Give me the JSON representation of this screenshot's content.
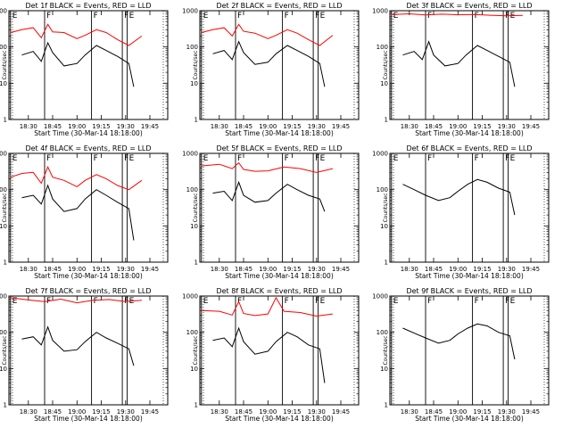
{
  "chart_data": [
    {
      "type": "line",
      "title": "Det 1f BLACK = Events, RED = LLD",
      "xlabel": "Start Time (30-Mar-14 18:18:00)",
      "ylabel": "Counts/sec",
      "ylim": [
        1,
        1000
      ],
      "yscale": "log",
      "x_ticks": [
        "18:30",
        "18:45",
        "19:00",
        "19:15",
        "19:30",
        "19:45"
      ],
      "y_ticks": [
        "1",
        "10",
        "100",
        "1000"
      ],
      "markers": [
        {
          "t": "E",
          "x": "18:19"
        },
        {
          "t": "F",
          "x": "18:40"
        },
        {
          "t": "F",
          "x": "19:09"
        },
        {
          "t": "F",
          "x": "19:28"
        },
        {
          "t": "E",
          "x": "19:31"
        }
      ],
      "series": [
        {
          "color": "#ff0000",
          "x": [
            "18:19",
            "18:26",
            "18:33",
            "18:38",
            "18:42",
            "18:45",
            "18:52",
            "19:00",
            "19:05",
            "19:12",
            "19:18",
            "19:25",
            "19:32",
            "19:40"
          ],
          "values": [
            250,
            300,
            340,
            180,
            420,
            260,
            250,
            170,
            210,
            300,
            250,
            160,
            110,
            200
          ]
        },
        {
          "color": "#000000",
          "x": [
            "18:26",
            "18:33",
            "18:38",
            "18:42",
            "18:45",
            "18:52",
            "19:00",
            "19:05",
            "19:12",
            "19:18",
            "19:25",
            "19:32",
            "19:35"
          ],
          "values": [
            60,
            75,
            40,
            130,
            70,
            30,
            35,
            60,
            110,
            80,
            55,
            35,
            8
          ]
        }
      ]
    },
    {
      "type": "line",
      "title": "Det 2f BLACK = Events, RED = LLD",
      "xlabel": "Start Time (30-Mar-14 18:18:00)",
      "ylabel": "Counts/sec",
      "ylim": [
        1,
        1000
      ],
      "yscale": "log",
      "x_ticks": [
        "18:30",
        "18:45",
        "19:00",
        "19:15",
        "19:30",
        "19:45"
      ],
      "y_ticks": [
        "1",
        "10",
        "100",
        "1000"
      ],
      "markers": [
        {
          "t": "E",
          "x": "18:19"
        },
        {
          "t": "F",
          "x": "18:40"
        },
        {
          "t": "F",
          "x": "19:09"
        },
        {
          "t": "F",
          "x": "19:28"
        },
        {
          "t": "E",
          "x": "19:31"
        }
      ],
      "series": [
        {
          "color": "#ff0000",
          "x": [
            "18:19",
            "18:26",
            "18:33",
            "18:38",
            "18:42",
            "18:45",
            "18:52",
            "19:00",
            "19:05",
            "19:12",
            "19:18",
            "19:25",
            "19:32",
            "19:40"
          ],
          "values": [
            250,
            300,
            340,
            200,
            420,
            270,
            240,
            170,
            210,
            300,
            240,
            160,
            110,
            210
          ]
        },
        {
          "color": "#000000",
          "x": [
            "18:26",
            "18:33",
            "18:38",
            "18:42",
            "18:45",
            "18:52",
            "19:00",
            "19:05",
            "19:12",
            "19:18",
            "19:25",
            "19:32",
            "19:35"
          ],
          "values": [
            65,
            80,
            45,
            140,
            70,
            33,
            38,
            65,
            110,
            80,
            55,
            35,
            8
          ]
        }
      ]
    },
    {
      "type": "line",
      "title": "Det 3f BLACK = Events, RED = LLD",
      "xlabel": "Start Time (30-Mar-14 18:18:00)",
      "ylabel": "Counts/sec",
      "ylim": [
        1,
        1000
      ],
      "yscale": "log",
      "x_ticks": [
        "18:30",
        "18:45",
        "19:00",
        "19:15",
        "19:30",
        "19:45"
      ],
      "y_ticks": [
        "1",
        "10",
        "100",
        "1000"
      ],
      "markers": [
        {
          "t": "E",
          "x": "18:19"
        },
        {
          "t": "F",
          "x": "18:40"
        },
        {
          "t": "F",
          "x": "19:09"
        },
        {
          "t": "F",
          "x": "19:28"
        },
        {
          "t": "E",
          "x": "19:31"
        }
      ],
      "series": [
        {
          "color": "#ff0000",
          "x": [
            "18:19",
            "18:30",
            "18:40",
            "18:50",
            "19:00",
            "19:10",
            "19:20",
            "19:30",
            "19:40"
          ],
          "values": [
            780,
            820,
            760,
            800,
            770,
            790,
            750,
            720,
            740
          ]
        },
        {
          "color": "#000000",
          "x": [
            "18:26",
            "18:33",
            "18:38",
            "18:42",
            "18:45",
            "18:52",
            "19:00",
            "19:05",
            "19:12",
            "19:18",
            "19:25",
            "19:32",
            "19:35"
          ],
          "values": [
            60,
            75,
            45,
            140,
            60,
            30,
            35,
            60,
            110,
            80,
            55,
            38,
            8
          ]
        }
      ]
    },
    {
      "type": "line",
      "title": "Det 4f BLACK = Events, RED = LLD",
      "xlabel": "Start Time (30-Mar-14 18:18:00)",
      "ylabel": "Counts/sec",
      "ylim": [
        1,
        1000
      ],
      "yscale": "log",
      "x_ticks": [
        "18:30",
        "18:45",
        "19:00",
        "19:15",
        "19:30",
        "19:45"
      ],
      "y_ticks": [
        "1",
        "10",
        "100",
        "1000"
      ],
      "markers": [
        {
          "t": "E",
          "x": "18:19"
        },
        {
          "t": "F",
          "x": "18:40"
        },
        {
          "t": "F",
          "x": "19:09"
        },
        {
          "t": "F",
          "x": "19:28"
        },
        {
          "t": "E",
          "x": "19:31"
        }
      ],
      "series": [
        {
          "color": "#ff0000",
          "x": [
            "18:19",
            "18:26",
            "18:33",
            "18:38",
            "18:42",
            "18:45",
            "18:52",
            "19:00",
            "19:05",
            "19:12",
            "19:18",
            "19:25",
            "19:32",
            "19:40"
          ],
          "values": [
            220,
            280,
            300,
            150,
            420,
            220,
            180,
            120,
            180,
            260,
            200,
            130,
            100,
            180
          ]
        },
        {
          "color": "#000000",
          "x": [
            "18:26",
            "18:33",
            "18:38",
            "18:42",
            "18:45",
            "18:52",
            "19:00",
            "19:05",
            "19:12",
            "19:18",
            "19:25",
            "19:32",
            "19:35"
          ],
          "values": [
            60,
            70,
            40,
            130,
            55,
            25,
            30,
            55,
            100,
            70,
            45,
            30,
            4
          ]
        }
      ]
    },
    {
      "type": "line",
      "title": "Det 5f BLACK = Events, RED = LLD",
      "xlabel": "Start Time (30-Mar-14 18:18:00)",
      "ylabel": "Counts/sec",
      "ylim": [
        1,
        1000
      ],
      "yscale": "log",
      "x_ticks": [
        "18:30",
        "18:45",
        "19:00",
        "19:15",
        "19:30",
        "19:45"
      ],
      "y_ticks": [
        "1",
        "10",
        "100",
        "1000"
      ],
      "markers": [
        {
          "t": "E",
          "x": "18:19"
        },
        {
          "t": "F",
          "x": "18:40"
        },
        {
          "t": "F",
          "x": "19:09"
        },
        {
          "t": "F",
          "x": "19:28"
        },
        {
          "t": "E",
          "x": "19:31"
        }
      ],
      "series": [
        {
          "color": "#ff0000",
          "x": [
            "18:19",
            "18:30",
            "18:38",
            "18:42",
            "18:45",
            "18:52",
            "19:00",
            "19:10",
            "19:20",
            "19:30",
            "19:40"
          ],
          "values": [
            450,
            500,
            380,
            550,
            360,
            320,
            330,
            420,
            380,
            300,
            380
          ]
        },
        {
          "color": "#000000",
          "x": [
            "18:26",
            "18:33",
            "18:38",
            "18:42",
            "18:45",
            "18:52",
            "19:00",
            "19:05",
            "19:12",
            "19:18",
            "19:25",
            "19:32",
            "19:35"
          ],
          "values": [
            80,
            90,
            50,
            160,
            70,
            45,
            50,
            80,
            140,
            100,
            70,
            55,
            25
          ]
        }
      ]
    },
    {
      "type": "line",
      "title": "Det 6f BLACK = Events, RED = LLD",
      "xlabel": "Start Time (30-Mar-14 18:18:00)",
      "ylabel": "Counts/sec",
      "ylim": [
        1,
        1000
      ],
      "yscale": "log",
      "x_ticks": [
        "18:30",
        "18:45",
        "19:00",
        "19:15",
        "19:30",
        "19:45"
      ],
      "y_ticks": [
        "1",
        "10",
        "100",
        "1000"
      ],
      "markers": [
        {
          "t": "E",
          "x": "18:19"
        },
        {
          "t": "F",
          "x": "18:40"
        },
        {
          "t": "F",
          "x": "19:09"
        },
        {
          "t": "F",
          "x": "19:28"
        },
        {
          "t": "E",
          "x": "19:31"
        }
      ],
      "series": [
        {
          "color": "#000000",
          "x": [
            "18:26",
            "18:33",
            "18:40",
            "18:48",
            "18:55",
            "19:00",
            "19:06",
            "19:12",
            "19:18",
            "19:25",
            "19:32",
            "19:35"
          ],
          "values": [
            140,
            100,
            70,
            50,
            60,
            90,
            140,
            190,
            160,
            110,
            85,
            20
          ]
        }
      ]
    },
    {
      "type": "line",
      "title": "Det 7f BLACK = Events, RED = LLD",
      "xlabel": "Start Time (30-Mar-14 18:18:00)",
      "ylabel": "Counts/sec",
      "ylim": [
        1,
        1000
      ],
      "yscale": "log",
      "x_ticks": [
        "18:30",
        "18:45",
        "19:00",
        "19:15",
        "19:30",
        "19:45"
      ],
      "y_ticks": [
        "1",
        "10",
        "100",
        "1000"
      ],
      "markers": [
        {
          "t": "E",
          "x": "18:19"
        },
        {
          "t": "F",
          "x": "18:40"
        },
        {
          "t": "F",
          "x": "19:09"
        },
        {
          "t": "F",
          "x": "19:28"
        },
        {
          "t": "E",
          "x": "19:31"
        }
      ],
      "series": [
        {
          "color": "#ff0000",
          "x": [
            "18:19",
            "18:30",
            "18:40",
            "18:50",
            "19:00",
            "19:10",
            "19:20",
            "19:30",
            "19:40"
          ],
          "values": [
            900,
            780,
            700,
            820,
            650,
            760,
            800,
            700,
            760
          ]
        },
        {
          "color": "#000000",
          "x": [
            "18:26",
            "18:33",
            "18:38",
            "18:42",
            "18:45",
            "18:52",
            "19:00",
            "19:05",
            "19:12",
            "19:18",
            "19:25",
            "19:32",
            "19:35"
          ],
          "values": [
            65,
            75,
            45,
            140,
            60,
            30,
            33,
            55,
            100,
            70,
            50,
            35,
            12
          ]
        }
      ]
    },
    {
      "type": "line",
      "title": "Det 8f BLACK = Events, RED = LLD",
      "xlabel": "Start Time (30-Mar-14 18:18:00)",
      "ylabel": "Counts/sec",
      "ylim": [
        1,
        1000
      ],
      "yscale": "log",
      "x_ticks": [
        "18:30",
        "18:45",
        "19:00",
        "19:15",
        "19:30",
        "19:45"
      ],
      "y_ticks": [
        "1",
        "10",
        "100",
        "1000"
      ],
      "markers": [
        {
          "t": "E",
          "x": "18:19"
        },
        {
          "t": "F",
          "x": "18:40"
        },
        {
          "t": "F",
          "x": "19:09"
        },
        {
          "t": "F",
          "x": "19:28"
        },
        {
          "t": "E",
          "x": "19:31"
        }
      ],
      "series": [
        {
          "color": "#ff0000",
          "x": [
            "18:19",
            "18:30",
            "18:38",
            "18:42",
            "18:45",
            "18:52",
            "19:00",
            "19:05",
            "19:10",
            "19:20",
            "19:30",
            "19:40"
          ],
          "values": [
            400,
            380,
            300,
            700,
            330,
            290,
            320,
            900,
            380,
            350,
            280,
            320
          ]
        },
        {
          "color": "#000000",
          "x": [
            "18:26",
            "18:33",
            "18:38",
            "18:42",
            "18:45",
            "18:52",
            "19:00",
            "19:05",
            "19:12",
            "19:18",
            "19:25",
            "19:32",
            "19:35"
          ],
          "values": [
            60,
            70,
            40,
            130,
            55,
            25,
            30,
            55,
            100,
            75,
            45,
            35,
            4
          ]
        }
      ]
    },
    {
      "type": "line",
      "title": "Det 9f BLACK = Events, RED = LLD",
      "xlabel": "Start Time (30-Mar-14 18:18:00)",
      "ylabel": "Counts/sec",
      "ylim": [
        1,
        1000
      ],
      "yscale": "log",
      "x_ticks": [
        "18:30",
        "18:45",
        "19:00",
        "19:15",
        "19:30",
        "19:45"
      ],
      "y_ticks": [
        "1",
        "10",
        "100",
        "1000"
      ],
      "markers": [
        {
          "t": "E",
          "x": "18:19"
        },
        {
          "t": "F",
          "x": "18:40"
        },
        {
          "t": "F",
          "x": "19:09"
        },
        {
          "t": "F",
          "x": "19:28"
        },
        {
          "t": "E",
          "x": "19:31"
        }
      ],
      "series": [
        {
          "color": "#000000",
          "x": [
            "18:26",
            "18:33",
            "18:40",
            "18:48",
            "18:55",
            "19:00",
            "19:06",
            "19:12",
            "19:18",
            "19:25",
            "19:32",
            "19:35"
          ],
          "values": [
            130,
            95,
            70,
            50,
            60,
            90,
            130,
            170,
            150,
            100,
            80,
            18
          ]
        }
      ]
    }
  ]
}
